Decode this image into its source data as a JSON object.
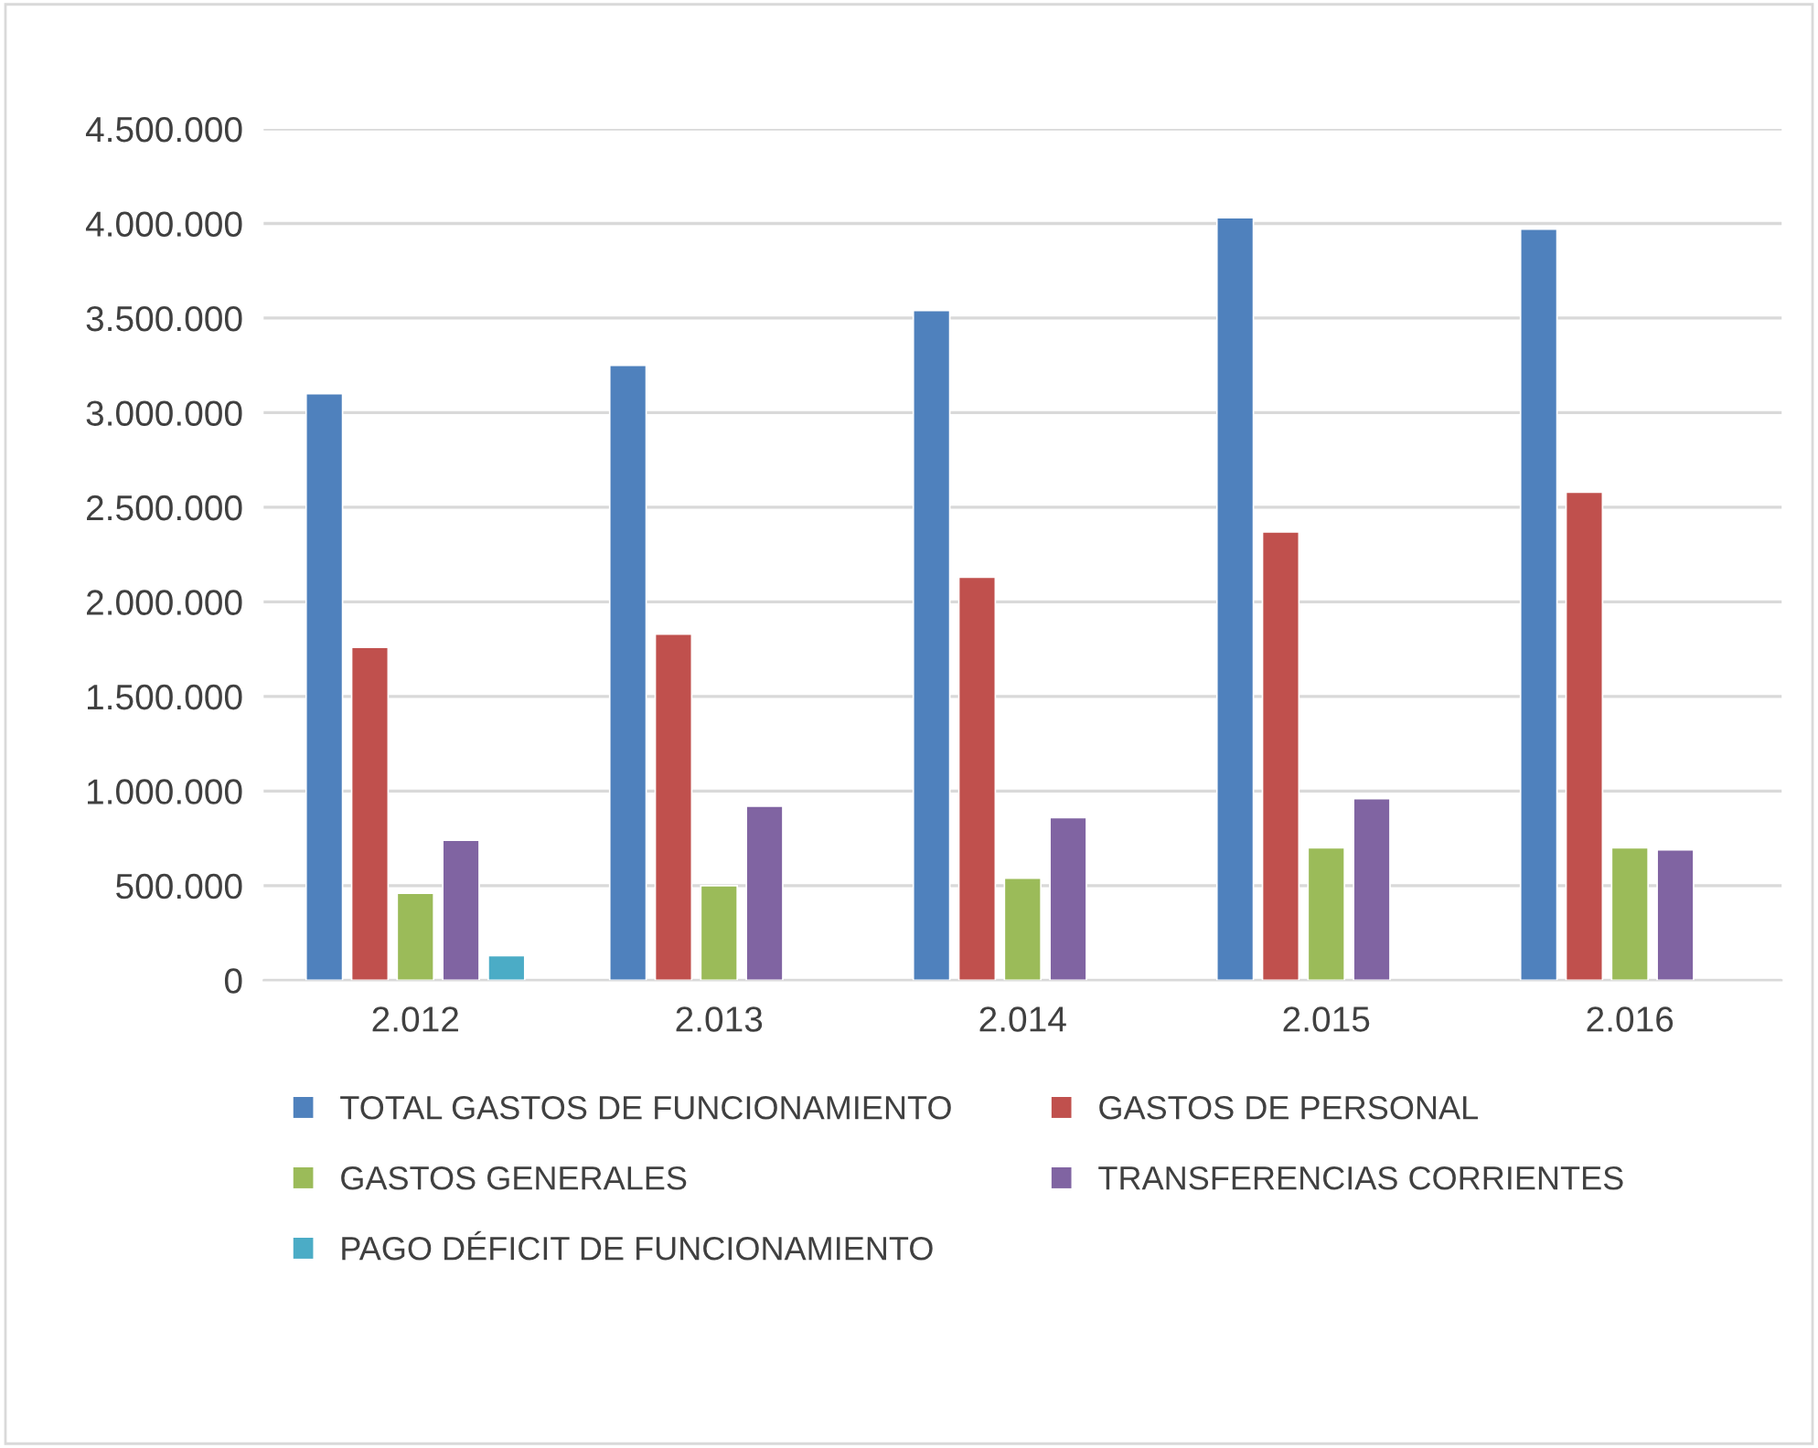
{
  "chart_data": {
    "type": "bar",
    "categories": [
      "2.012",
      "2.013",
      "2.014",
      "2.015",
      "2.016"
    ],
    "series": [
      {
        "name": "TOTAL GASTOS DE FUNCIONAMIENTO",
        "color": "#4f81bd",
        "values": [
          3100000,
          3250000,
          3540000,
          4030000,
          3970000
        ]
      },
      {
        "name": "GASTOS DE PERSONAL",
        "color": "#c0504d",
        "values": [
          1760000,
          1830000,
          2130000,
          2370000,
          2580000
        ]
      },
      {
        "name": "GASTOS GENERALES",
        "color": "#9bbb59",
        "values": [
          460000,
          500000,
          540000,
          700000,
          700000
        ]
      },
      {
        "name": "TRANSFERENCIAS CORRIENTES",
        "color": "#8064a2",
        "values": [
          740000,
          920000,
          860000,
          960000,
          690000
        ]
      },
      {
        "name": "PAGO DÉFICIT DE FUNCIONAMIENTO",
        "color": "#4bacc6",
        "values": [
          130000,
          null,
          null,
          null,
          null
        ]
      }
    ],
    "ylim": [
      0,
      4500000
    ],
    "yticks": [
      {
        "value": 0,
        "label": "0"
      },
      {
        "value": 500000,
        "label": "500.000"
      },
      {
        "value": 1000000,
        "label": "1.000.000"
      },
      {
        "value": 1500000,
        "label": "1.500.000"
      },
      {
        "value": 2000000,
        "label": "2.000.000"
      },
      {
        "value": 2500000,
        "label": "2.500.000"
      },
      {
        "value": 3000000,
        "label": "3.000.000"
      },
      {
        "value": 3500000,
        "label": "3.500.000"
      },
      {
        "value": 4000000,
        "label": "4.000.000"
      },
      {
        "value": 4500000,
        "label": "4.500.000"
      }
    ],
    "grid": "y",
    "legend": "bottom"
  }
}
